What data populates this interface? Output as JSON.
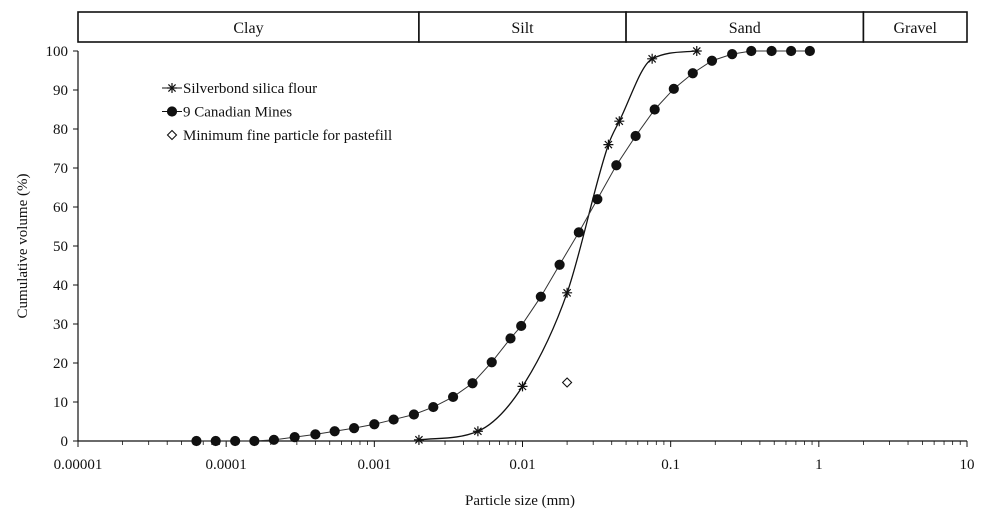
{
  "chart_data": {
    "type": "scatter",
    "xscale": "log",
    "xlabel": "Particle size (mm)",
    "ylabel": "Cumulative volume (%)",
    "xlim": [
      1e-05,
      10
    ],
    "ylim": [
      0,
      100
    ],
    "xticks": [
      {
        "value": 1e-05,
        "label": "0.00001"
      },
      {
        "value": 0.0001,
        "label": "0.0001"
      },
      {
        "value": 0.001,
        "label": "0.001"
      },
      {
        "value": 0.01,
        "label": "0.01"
      },
      {
        "value": 0.1,
        "label": "0.1"
      },
      {
        "value": 1,
        "label": "1"
      },
      {
        "value": 10,
        "label": "10"
      }
    ],
    "yticks": [
      {
        "value": 0,
        "label": "0"
      },
      {
        "value": 10,
        "label": "10"
      },
      {
        "value": 20,
        "label": "20"
      },
      {
        "value": 30,
        "label": "30"
      },
      {
        "value": 40,
        "label": "40"
      },
      {
        "value": 50,
        "label": "50"
      },
      {
        "value": 60,
        "label": "60"
      },
      {
        "value": 70,
        "label": "70"
      },
      {
        "value": 80,
        "label": "80"
      },
      {
        "value": 90,
        "label": "90"
      },
      {
        "value": 100,
        "label": "100"
      }
    ],
    "size_classes": [
      {
        "label": "Clay",
        "from": 1e-05,
        "to": 0.002
      },
      {
        "label": "Silt",
        "from": 0.002,
        "to": 0.05
      },
      {
        "label": "Sand",
        "from": 0.05,
        "to": 2
      },
      {
        "label": "Gravel",
        "from": 2,
        "to": 10
      }
    ],
    "series": [
      {
        "name": "Silverbond silica flour",
        "marker": "asterisk",
        "curve": "smooth",
        "points": [
          {
            "x": 0.002,
            "y": 0.3
          },
          {
            "x": 0.005,
            "y": 2.5
          },
          {
            "x": 0.01,
            "y": 14
          },
          {
            "x": 0.02,
            "y": 38
          },
          {
            "x": 0.038,
            "y": 76
          },
          {
            "x": 0.045,
            "y": 82
          },
          {
            "x": 0.075,
            "y": 98
          },
          {
            "x": 0.15,
            "y": 100
          }
        ]
      },
      {
        "name": "9 Canadian Mines",
        "marker": "circle",
        "curve": "linear",
        "points": [
          {
            "x": 6.3e-05,
            "y": 0
          },
          {
            "x": 8.5e-05,
            "y": 0
          },
          {
            "x": 0.000115,
            "y": 0
          },
          {
            "x": 0.000155,
            "y": 0
          },
          {
            "x": 0.00021,
            "y": 0.3
          },
          {
            "x": 0.00029,
            "y": 1
          },
          {
            "x": 0.0004,
            "y": 1.7
          },
          {
            "x": 0.00054,
            "y": 2.5
          },
          {
            "x": 0.00073,
            "y": 3.3
          },
          {
            "x": 0.001,
            "y": 4.3
          },
          {
            "x": 0.00135,
            "y": 5.5
          },
          {
            "x": 0.00185,
            "y": 6.8
          },
          {
            "x": 0.0025,
            "y": 8.7
          },
          {
            "x": 0.0034,
            "y": 11.3
          },
          {
            "x": 0.0046,
            "y": 14.8
          },
          {
            "x": 0.0062,
            "y": 20.2
          },
          {
            "x": 0.0083,
            "y": 26.3
          },
          {
            "x": 0.0098,
            "y": 29.5
          },
          {
            "x": 0.0133,
            "y": 37
          },
          {
            "x": 0.0178,
            "y": 45.2
          },
          {
            "x": 0.024,
            "y": 53.5
          },
          {
            "x": 0.032,
            "y": 62
          },
          {
            "x": 0.043,
            "y": 70.7
          },
          {
            "x": 0.058,
            "y": 78.2
          },
          {
            "x": 0.078,
            "y": 85
          },
          {
            "x": 0.105,
            "y": 90.3
          },
          {
            "x": 0.141,
            "y": 94.3
          },
          {
            "x": 0.19,
            "y": 97.5
          },
          {
            "x": 0.26,
            "y": 99.2
          },
          {
            "x": 0.35,
            "y": 100
          },
          {
            "x": 0.48,
            "y": 100
          },
          {
            "x": 0.65,
            "y": 100
          },
          {
            "x": 0.87,
            "y": 100
          }
        ]
      },
      {
        "name": "Minimum fine particle for pastefill",
        "marker": "diamond",
        "curve": "none",
        "points": [
          {
            "x": 0.02,
            "y": 15
          }
        ]
      }
    ],
    "legend_position": "top-left"
  }
}
